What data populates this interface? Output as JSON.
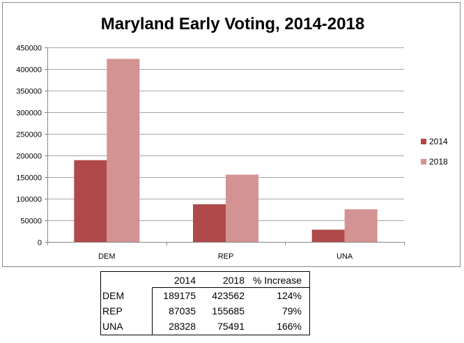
{
  "colors": {
    "series_2014": "#b04a4a",
    "series_2018": "#d49393",
    "grid": "#a6a6a6",
    "axis": "#868686"
  },
  "chart_data": {
    "type": "bar",
    "title": "Maryland Early Voting, 2014-2018",
    "xlabel": "",
    "ylabel": "",
    "categories": [
      "DEM",
      "REP",
      "UNA"
    ],
    "series": [
      {
        "name": "2014",
        "values": [
          189175,
          87035,
          28328
        ]
      },
      {
        "name": "2018",
        "values": [
          423562,
          155685,
          75491
        ]
      }
    ],
    "ylim": [
      0,
      450000
    ],
    "yticks": [
      "0",
      "50000",
      "100000",
      "150000",
      "200000",
      "250000",
      "300000",
      "350000",
      "400000",
      "450000"
    ],
    "grid": true,
    "legend_position": "right"
  },
  "table": {
    "headers": [
      "",
      "2014",
      "2018",
      "% Increase"
    ],
    "rows": [
      [
        "DEM",
        "189175",
        "423562",
        "124%"
      ],
      [
        "REP",
        "87035",
        "155685",
        "79%"
      ],
      [
        "UNA",
        "28328",
        "75491",
        "166%"
      ]
    ]
  }
}
